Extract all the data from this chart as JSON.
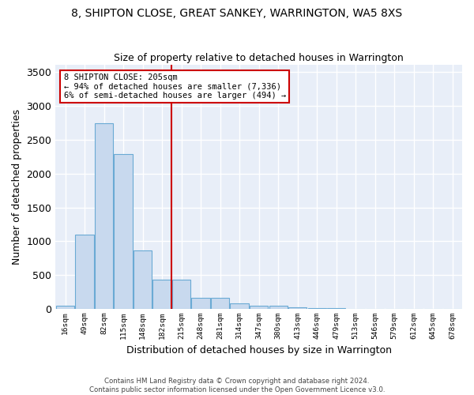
{
  "title": "8, SHIPTON CLOSE, GREAT SANKEY, WARRINGTON, WA5 8XS",
  "subtitle": "Size of property relative to detached houses in Warrington",
  "xlabel": "Distribution of detached houses by size in Warrington",
  "ylabel": "Number of detached properties",
  "bar_color": "#c8d9ee",
  "bar_edge_color": "#6aaad4",
  "bg_color": "#e8eef8",
  "grid_color": "#ffffff",
  "categories": [
    "16sqm",
    "49sqm",
    "82sqm",
    "115sqm",
    "148sqm",
    "182sqm",
    "215sqm",
    "248sqm",
    "281sqm",
    "314sqm",
    "347sqm",
    "380sqm",
    "413sqm",
    "446sqm",
    "479sqm",
    "513sqm",
    "546sqm",
    "579sqm",
    "612sqm",
    "645sqm",
    "678sqm"
  ],
  "values": [
    55,
    1100,
    2740,
    2290,
    870,
    430,
    430,
    165,
    165,
    90,
    55,
    55,
    30,
    15,
    15,
    5,
    5,
    5,
    5,
    5,
    5
  ],
  "ylim": [
    0,
    3600
  ],
  "yticks": [
    0,
    500,
    1000,
    1500,
    2000,
    2500,
    3000,
    3500
  ],
  "vline_idx": 5.5,
  "marker_label_line1": "8 SHIPTON CLOSE: 205sqm",
  "marker_label_line2": "← 94% of detached houses are smaller (7,336)",
  "marker_label_line3": "6% of semi-detached houses are larger (494) →",
  "marker_color": "#cc0000",
  "footer_line1": "Contains HM Land Registry data © Crown copyright and database right 2024.",
  "footer_line2": "Contains public sector information licensed under the Open Government Licence v3.0."
}
